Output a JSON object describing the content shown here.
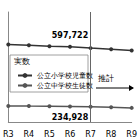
{
  "chart_data": {
    "type": "line",
    "categories": [
      "R3",
      "R4",
      "R5",
      "R6",
      "R7",
      "R8",
      "R9"
    ],
    "series": [
      {
        "name": "公立小学校児童数",
        "color": "#333333",
        "marker": "circle",
        "values": [
          612000,
          607000,
          602000,
          597722,
          590000,
          583000,
          575000
        ],
        "value_labels": [
          null,
          null,
          null,
          "597,722",
          null,
          null,
          null
        ]
      },
      {
        "name": "公立中学校生徒数",
        "color": "#555555",
        "marker": "circle",
        "values": [
          238000,
          237000,
          236500,
          234928,
          233000,
          230000,
          226000
        ],
        "value_labels": [
          null,
          null,
          null,
          "234,928",
          null,
          null,
          null
        ]
      }
    ],
    "ylim": [
      140000,
      810000
    ],
    "tick_labels": "x",
    "grid": false,
    "legend": "left",
    "annotations": [
      {
        "text": "実数"
      },
      {
        "text": "推計",
        "from": "R7"
      }
    ]
  }
}
